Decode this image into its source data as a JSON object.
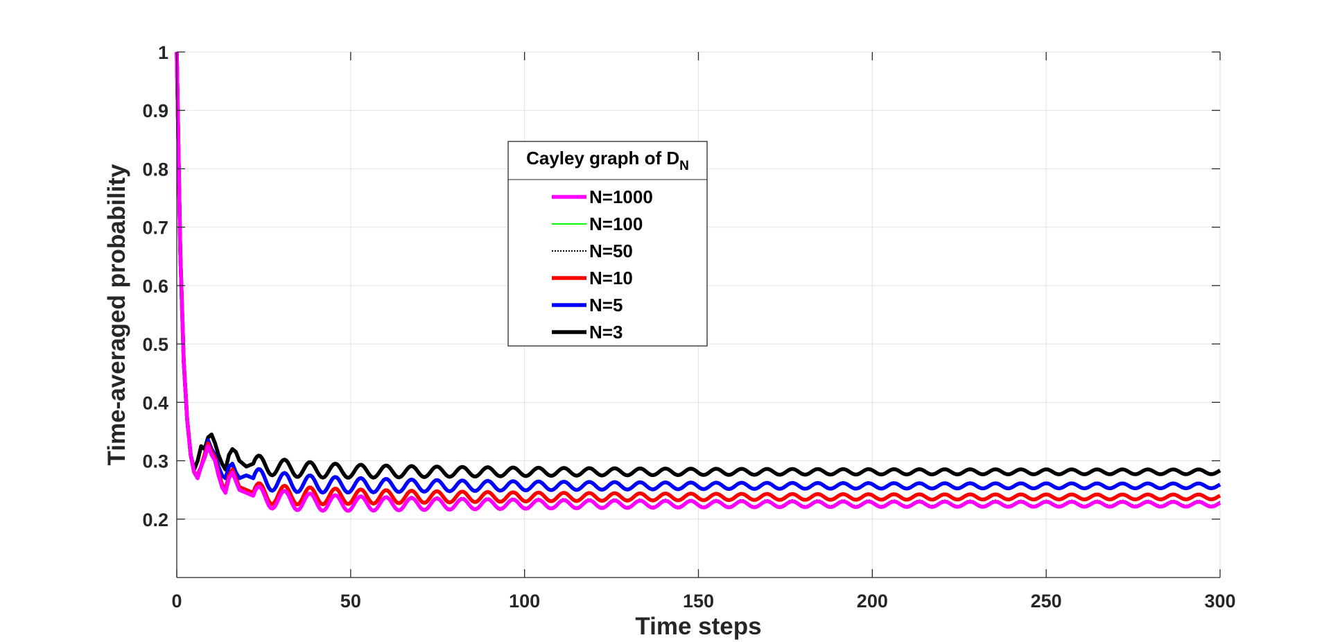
{
  "chart_data": {
    "type": "line",
    "title": "",
    "xlabel": "Time steps",
    "ylabel": "Time-averaged probability",
    "xlim": [
      0,
      300
    ],
    "ylim": [
      0.1,
      1
    ],
    "xticks": [
      0,
      50,
      100,
      150,
      200,
      250,
      300
    ],
    "xtick_labels": [
      "0",
      "50",
      "100",
      "150",
      "200",
      "250",
      "300"
    ],
    "yticks": [
      0.2,
      0.3,
      0.4,
      0.5,
      0.6,
      0.7,
      0.8,
      0.9,
      1
    ],
    "ytick_labels": [
      "0.2",
      "0.3",
      "0.4",
      "0.5",
      "0.6",
      "0.7",
      "0.8",
      "0.9",
      "1"
    ],
    "grid": true,
    "legend": {
      "title": "Cayley graph of D",
      "title_subscript": "N",
      "placement": "upper-center"
    },
    "series": [
      {
        "name": "N=1000",
        "color": "#ff00ff",
        "style": "solid",
        "width": "thick",
        "asymptote": 0.2255,
        "amp": 0.014,
        "keypoints": [
          [
            0,
            1
          ],
          [
            1,
            0.66
          ],
          [
            2,
            0.47
          ],
          [
            3,
            0.37
          ],
          [
            4,
            0.31
          ],
          [
            5,
            0.28
          ],
          [
            6,
            0.27
          ],
          [
            7,
            0.29
          ],
          [
            8,
            0.305
          ],
          [
            9,
            0.325
          ],
          [
            10,
            0.31
          ],
          [
            11,
            0.3
          ],
          [
            12,
            0.275
          ],
          [
            13,
            0.255
          ],
          [
            14,
            0.245
          ],
          [
            15,
            0.27
          ],
          [
            16,
            0.28
          ],
          [
            17,
            0.265
          ],
          [
            18,
            0.25
          ],
          [
            20,
            0.245
          ],
          [
            22,
            0.24
          ]
        ]
      },
      {
        "name": "N=100",
        "color": "#00ff00",
        "style": "solid",
        "width": "thin",
        "asymptote": 0.227,
        "amp": 0.014,
        "keypoints": [
          [
            0,
            1
          ],
          [
            1,
            0.66
          ],
          [
            2,
            0.47
          ],
          [
            3,
            0.37
          ],
          [
            4,
            0.31
          ],
          [
            5,
            0.28
          ],
          [
            6,
            0.27
          ],
          [
            7,
            0.29
          ],
          [
            8,
            0.305
          ],
          [
            9,
            0.325
          ],
          [
            10,
            0.31
          ],
          [
            11,
            0.3
          ],
          [
            12,
            0.275
          ],
          [
            13,
            0.255
          ],
          [
            14,
            0.245
          ],
          [
            15,
            0.27
          ],
          [
            16,
            0.28
          ],
          [
            17,
            0.265
          ],
          [
            18,
            0.25
          ],
          [
            20,
            0.245
          ],
          [
            22,
            0.24
          ]
        ]
      },
      {
        "name": "N=50",
        "color": "#000000",
        "style": "dotted",
        "width": "thin",
        "asymptote": 0.228,
        "amp": 0.014,
        "keypoints": [
          [
            0,
            1
          ],
          [
            1,
            0.66
          ],
          [
            2,
            0.47
          ],
          [
            3,
            0.37
          ],
          [
            4,
            0.31
          ],
          [
            5,
            0.28
          ],
          [
            6,
            0.27
          ],
          [
            7,
            0.29
          ],
          [
            8,
            0.305
          ],
          [
            9,
            0.325
          ],
          [
            10,
            0.31
          ],
          [
            11,
            0.3
          ],
          [
            12,
            0.275
          ],
          [
            13,
            0.255
          ],
          [
            14,
            0.245
          ],
          [
            15,
            0.27
          ],
          [
            16,
            0.28
          ],
          [
            17,
            0.265
          ],
          [
            18,
            0.25
          ],
          [
            20,
            0.245
          ],
          [
            22,
            0.24
          ]
        ]
      },
      {
        "name": "N=10",
        "color": "#ff0000",
        "style": "solid",
        "width": "thick",
        "asymptote": 0.238,
        "amp": 0.014,
        "keypoints": [
          [
            0,
            1
          ],
          [
            1,
            0.66
          ],
          [
            2,
            0.47
          ],
          [
            3,
            0.37
          ],
          [
            4,
            0.31
          ],
          [
            5,
            0.28
          ],
          [
            6,
            0.275
          ],
          [
            7,
            0.29
          ],
          [
            8,
            0.31
          ],
          [
            9,
            0.33
          ],
          [
            10,
            0.315
          ],
          [
            11,
            0.305
          ],
          [
            12,
            0.28
          ],
          [
            13,
            0.26
          ],
          [
            14,
            0.25
          ],
          [
            15,
            0.275
          ],
          [
            16,
            0.285
          ],
          [
            17,
            0.27
          ],
          [
            18,
            0.255
          ],
          [
            20,
            0.25
          ],
          [
            22,
            0.245
          ]
        ]
      },
      {
        "name": "N=5",
        "color": "#0000ff",
        "style": "solid",
        "width": "thick",
        "asymptote": 0.257,
        "amp": 0.014,
        "keypoints": [
          [
            0,
            1
          ],
          [
            1,
            0.66
          ],
          [
            2,
            0.47
          ],
          [
            3,
            0.37
          ],
          [
            4,
            0.31
          ],
          [
            5,
            0.28
          ],
          [
            6,
            0.275
          ],
          [
            7,
            0.29
          ],
          [
            8,
            0.31
          ],
          [
            9,
            0.335
          ],
          [
            10,
            0.32
          ],
          [
            11,
            0.31
          ],
          [
            12,
            0.29
          ],
          [
            13,
            0.275
          ],
          [
            14,
            0.27
          ],
          [
            15,
            0.29
          ],
          [
            16,
            0.295
          ],
          [
            17,
            0.28
          ],
          [
            18,
            0.27
          ],
          [
            20,
            0.275
          ],
          [
            22,
            0.27
          ]
        ]
      },
      {
        "name": "N=3",
        "color": "#000000",
        "style": "solid",
        "width": "thick",
        "asymptote": 0.281,
        "amp": 0.012,
        "keypoints": [
          [
            0,
            1
          ],
          [
            1,
            0.66
          ],
          [
            2,
            0.47
          ],
          [
            3,
            0.37
          ],
          [
            4,
            0.31
          ],
          [
            5,
            0.285
          ],
          [
            6,
            0.3
          ],
          [
            7,
            0.325
          ],
          [
            8,
            0.32
          ],
          [
            9,
            0.34
          ],
          [
            10,
            0.345
          ],
          [
            11,
            0.33
          ],
          [
            12,
            0.31
          ],
          [
            13,
            0.295
          ],
          [
            14,
            0.285
          ],
          [
            15,
            0.31
          ],
          [
            16,
            0.32
          ],
          [
            17,
            0.315
          ],
          [
            18,
            0.3
          ],
          [
            20,
            0.29
          ],
          [
            22,
            0.295
          ]
        ]
      }
    ]
  }
}
